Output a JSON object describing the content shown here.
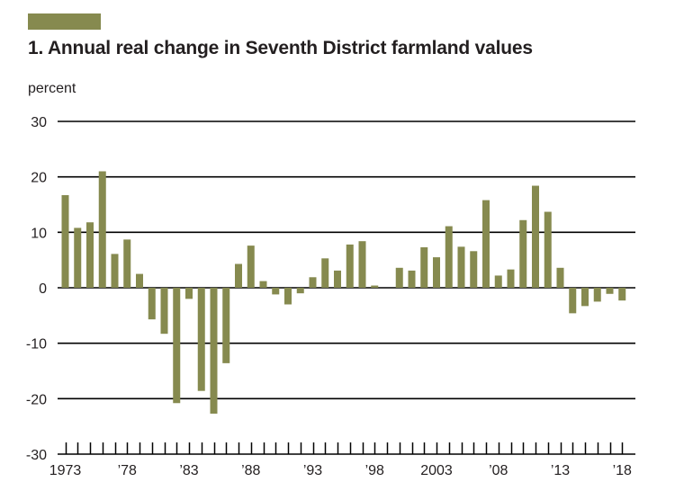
{
  "header": {
    "title": "1. Annual real change in Seventh District farmland values",
    "unit": "percent"
  },
  "colors": {
    "bar": "#868a4f",
    "accent_bar": "#868a4f",
    "gridline": "#000000",
    "text": "#231f20"
  },
  "chart_data": {
    "type": "bar",
    "title": "1. Annual real change in Seventh District farmland values",
    "xlabel": "",
    "ylabel": "percent",
    "ylim": [
      -30,
      30
    ],
    "yticks": [
      30,
      20,
      10,
      0,
      -10,
      -20,
      -30
    ],
    "grid": true,
    "x": [
      1973,
      1974,
      1975,
      1976,
      1977,
      1978,
      1979,
      1980,
      1981,
      1982,
      1983,
      1984,
      1985,
      1986,
      1987,
      1988,
      1989,
      1990,
      1991,
      1992,
      1993,
      1994,
      1995,
      1996,
      1997,
      1998,
      1999,
      2000,
      2001,
      2002,
      2003,
      2004,
      2005,
      2006,
      2007,
      2008,
      2009,
      2010,
      2011,
      2012,
      2013,
      2014,
      2015,
      2016,
      2017,
      2018
    ],
    "values": [
      16.7,
      10.8,
      11.8,
      21.0,
      6.1,
      8.7,
      2.5,
      -5.7,
      -8.3,
      -20.8,
      -2.0,
      -18.6,
      -22.7,
      -13.6,
      4.3,
      7.6,
      1.2,
      -1.2,
      -3.0,
      -1.0,
      1.9,
      5.3,
      3.1,
      7.8,
      8.4,
      0.4,
      0.0,
      3.6,
      3.1,
      7.3,
      5.5,
      11.1,
      7.4,
      6.6,
      15.8,
      2.2,
      3.3,
      12.2,
      18.4,
      13.7,
      3.6,
      -4.6,
      -3.3,
      -2.5,
      -1.1,
      -2.3
    ],
    "xtick_labels": [
      {
        "year": 1973,
        "label": "1973"
      },
      {
        "year": 1978,
        "label": "’78"
      },
      {
        "year": 1983,
        "label": "’83"
      },
      {
        "year": 1988,
        "label": "’88"
      },
      {
        "year": 1993,
        "label": "’93"
      },
      {
        "year": 1998,
        "label": "’98"
      },
      {
        "year": 2003,
        "label": "2003"
      },
      {
        "year": 2008,
        "label": "’08"
      },
      {
        "year": 2013,
        "label": "’13"
      },
      {
        "year": 2018,
        "label": "’18"
      }
    ]
  }
}
